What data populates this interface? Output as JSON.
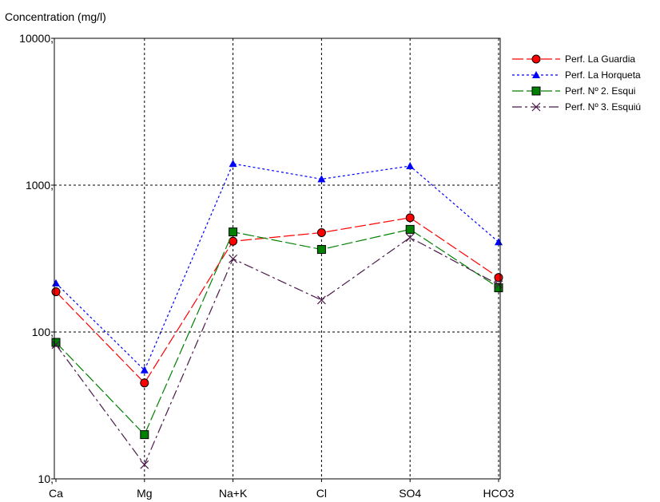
{
  "chart_data": {
    "type": "line",
    "ylabel": "Concentration (mg/l)",
    "xlabel": "",
    "y_scale": "log",
    "ylim": [
      10,
      10000
    ],
    "y_ticks": [
      10,
      100,
      1000,
      10000
    ],
    "y_tick_labels": [
      "10,",
      "100,",
      "1000,",
      "10000,"
    ],
    "categories": [
      "Ca",
      "Mg",
      "Na+K",
      "Cl",
      "SO4",
      "HCO3"
    ],
    "grid": true,
    "legend_position": "top-right",
    "series": [
      {
        "name": "Perf. La Guardia",
        "values": [
          188,
          45,
          415,
          475,
          600,
          235
        ],
        "color": "#ff0000",
        "marker": "circle",
        "dash": "long-dash"
      },
      {
        "name": "Perf. La Horqueta",
        "values": [
          215,
          55,
          1400,
          1100,
          1350,
          410
        ],
        "color": "#0000ff",
        "marker": "triangle",
        "dash": "dotted"
      },
      {
        "name": "Perf. Nº 2. Esqui",
        "values": [
          85,
          20,
          480,
          365,
          500,
          200
        ],
        "color": "#008000",
        "marker": "square",
        "dash": "long-dash"
      },
      {
        "name": "Perf. Nº 3. Esquiú",
        "values": [
          82,
          12.5,
          315,
          165,
          440,
          210
        ],
        "color": "#4b1a4b",
        "marker": "x",
        "dash": "dash-dot"
      }
    ]
  }
}
